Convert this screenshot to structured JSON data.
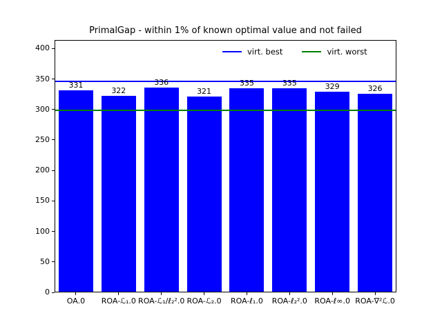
{
  "chart_data": {
    "type": "bar",
    "title": "PrimalGap - within 1% of known optimal value and not failed",
    "categories": [
      "OA.0",
      "ROA-ℒ₁.0",
      "ROA-ℒ₁/ℓ₂².0",
      "ROA-ℒ₂.0",
      "ROA-ℓ₁.0",
      "ROA-ℓ₂².0",
      "ROA-ℓ∞.0",
      "ROA-∇²ℒ.0"
    ],
    "values": [
      331,
      322,
      336,
      321,
      335,
      335,
      329,
      326
    ],
    "bar_color": "#0000ff",
    "xlabel": "",
    "ylabel": "",
    "ylim": [
      0,
      414
    ],
    "yticks": [
      0,
      50,
      100,
      150,
      200,
      250,
      300,
      350,
      400
    ],
    "grid": false,
    "legend_position": "upper right inside axes",
    "reference_lines": [
      {
        "label": "virt. best",
        "value": 346,
        "color": "#0000ff"
      },
      {
        "label": "virt. worst",
        "value": 299,
        "color": "#008000"
      }
    ],
    "axis_color": "#000000",
    "background_color": "#ffffff"
  }
}
